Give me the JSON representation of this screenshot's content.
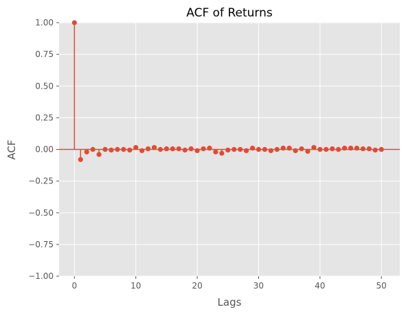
{
  "chart_data": {
    "type": "scatter",
    "style": "stem",
    "title": "ACF of Returns",
    "xlabel": "Lags",
    "ylabel": "ACF",
    "xlim": [
      -2.5,
      53
    ],
    "ylim": [
      -1.0,
      1.0
    ],
    "grid": true,
    "legend": "none",
    "colors": {
      "series": "#E24A33",
      "panel": "#E5E5E5",
      "grid": "#FFFFFF",
      "label": "#555555"
    },
    "x_ticks": [
      0,
      10,
      20,
      30,
      40,
      50
    ],
    "x_tick_labels": [
      "0",
      "10",
      "20",
      "30",
      "40",
      "50"
    ],
    "y_ticks": [
      1.0,
      0.75,
      0.5,
      0.25,
      0.0,
      -0.25,
      -0.5,
      -0.75,
      -1.0
    ],
    "y_tick_labels": [
      "1.00",
      "0.75",
      "0.50",
      "0.25",
      "0.00",
      "−0.25",
      "−0.50",
      "−0.75",
      "−1.00"
    ],
    "baseline": 0,
    "series": [
      {
        "x": [
          0,
          1,
          2,
          3,
          4,
          5,
          6,
          7,
          8,
          9,
          10,
          11,
          12,
          13,
          14,
          15,
          16,
          17,
          18,
          19,
          20,
          21,
          22,
          23,
          24,
          25,
          26,
          27,
          28,
          29,
          30,
          31,
          32,
          33,
          34,
          35,
          36,
          37,
          38,
          39,
          40,
          41,
          42,
          43,
          44,
          45,
          46,
          47,
          48,
          49,
          50
        ],
        "values": [
          1.0,
          -0.08,
          -0.02,
          0.0,
          -0.04,
          0.0,
          -0.005,
          0.0,
          0.0,
          -0.005,
          0.015,
          -0.01,
          0.005,
          0.015,
          0.0,
          0.005,
          0.005,
          0.005,
          -0.005,
          0.005,
          -0.01,
          0.005,
          0.01,
          -0.02,
          -0.03,
          -0.005,
          0.0,
          0.0,
          -0.01,
          0.01,
          0.0,
          0.0,
          -0.01,
          0.0,
          0.01,
          0.01,
          -0.01,
          0.005,
          -0.015,
          0.015,
          0.0,
          0.0,
          0.005,
          0.0,
          0.01,
          0.01,
          0.01,
          0.005,
          0.005,
          -0.005,
          0.0
        ]
      }
    ]
  }
}
